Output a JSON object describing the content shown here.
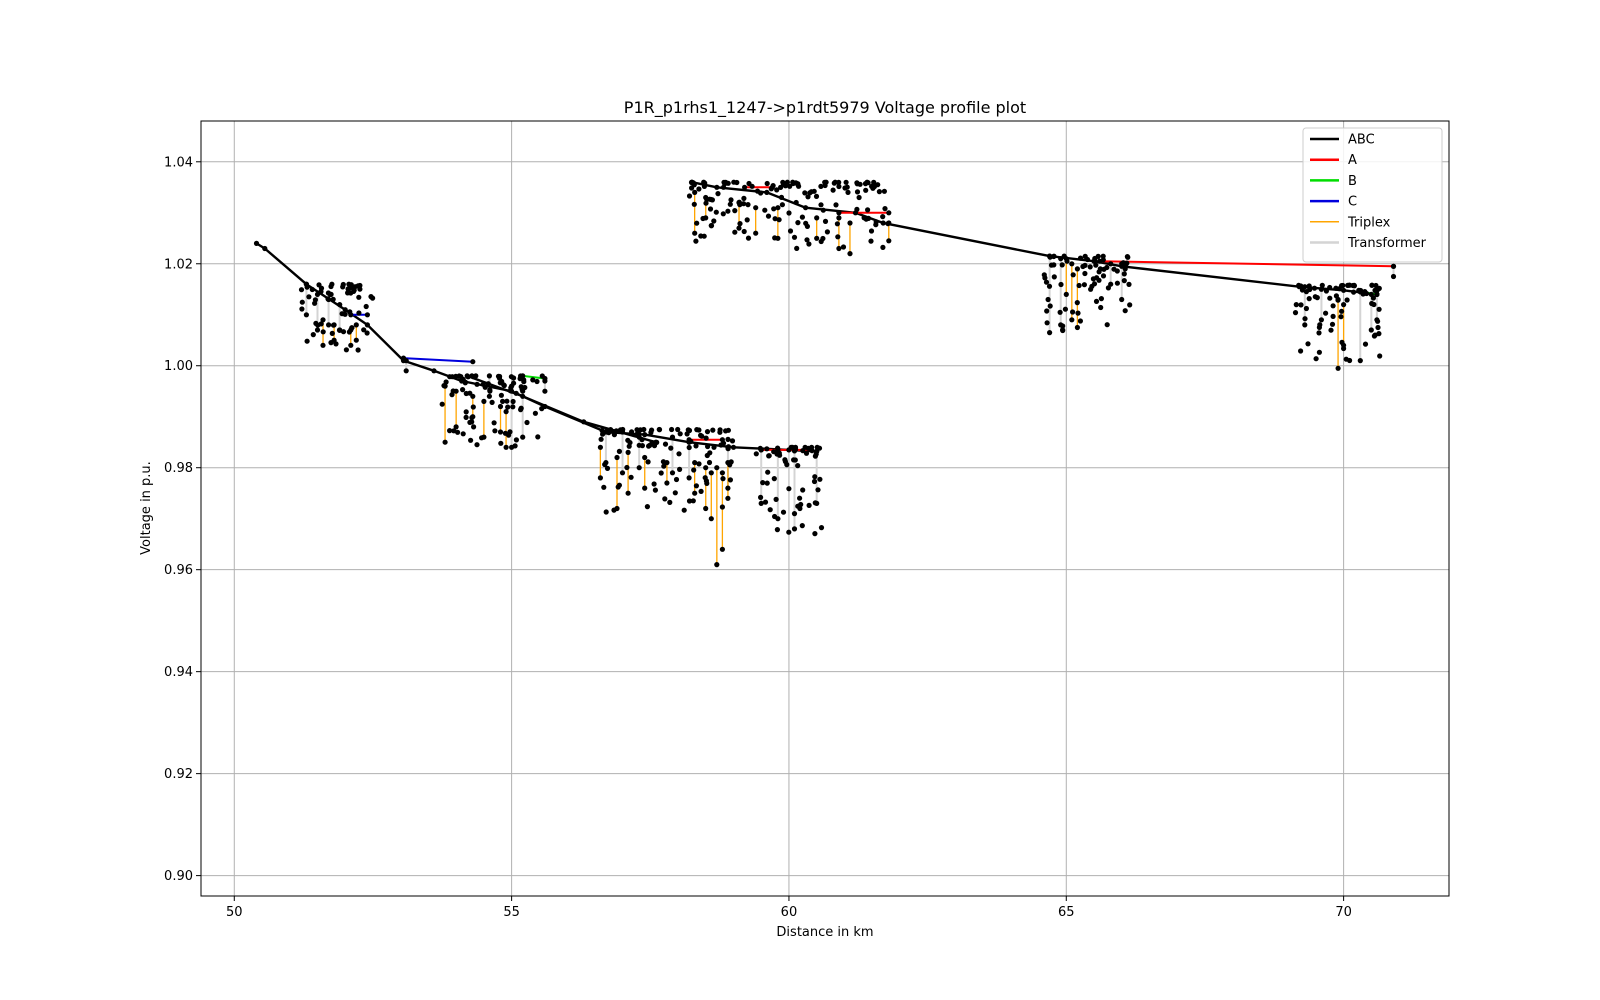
{
  "chart_data": {
    "type": "line",
    "title": "P1R_p1rhs1_1247->p1rdt5979 Voltage profile plot",
    "xlabel": "Distance in km",
    "ylabel": "Voltage in p.u.",
    "xlim": [
      49.4,
      71.9
    ],
    "ylim": [
      0.896,
      1.048
    ],
    "xticks": [
      50,
      55,
      60,
      65,
      70
    ],
    "yticks": [
      0.9,
      0.92,
      0.94,
      0.96,
      0.98,
      1.0,
      1.02,
      1.04
    ],
    "xtick_labels": [
      "50",
      "55",
      "60",
      "65",
      "70"
    ],
    "ytick_labels": [
      "0.90",
      "0.92",
      "0.94",
      "0.96",
      "0.98",
      "1.00",
      "1.02",
      "1.04"
    ],
    "grid": true,
    "legend_position": "top-right",
    "series": [
      {
        "name": "ABC",
        "color": "#000000",
        "kind": "primary",
        "segments": [
          [
            [
              50.4,
              1.024
            ],
            [
              50.55,
              1.023
            ],
            [
              51.3,
              1.016
            ],
            [
              52.0,
              1.011
            ],
            [
              52.4,
              1.008
            ],
            [
              53.05,
              1.001
            ],
            [
              53.6,
              0.999
            ],
            [
              54.1,
              0.997
            ],
            [
              55.0,
              0.995
            ],
            [
              55.6,
              0.992
            ],
            [
              56.7,
              0.987
            ],
            [
              57.4,
              0.9865
            ],
            [
              58.2,
              0.985
            ],
            [
              59.0,
              0.984
            ],
            [
              60.0,
              0.9835
            ],
            [
              60.5,
              0.9832
            ]
          ],
          [
            [
              54.2,
              0.998
            ],
            [
              55.2,
              0.994
            ],
            [
              56.3,
              0.989
            ],
            [
              57.6,
              0.985
            ]
          ],
          [
            [
              58.25,
              1.036
            ],
            [
              58.7,
              1.035
            ],
            [
              59.6,
              1.034
            ],
            [
              60.3,
              1.031
            ],
            [
              61.2,
              1.03
            ],
            [
              61.7,
              1.028
            ],
            [
              64.7,
              1.0215
            ],
            [
              65.5,
              1.0205
            ],
            [
              66.0,
              1.0195
            ],
            [
              69.2,
              1.0155
            ],
            [
              70.0,
              1.0148
            ],
            [
              70.6,
              1.014
            ]
          ]
        ]
      },
      {
        "name": "A",
        "color": "#ff0000",
        "kind": "primary",
        "segments": [
          [
            [
              59.2,
              1.035
            ],
            [
              59.7,
              1.035
            ]
          ],
          [
            [
              60.9,
              1.03
            ],
            [
              61.8,
              1.03
            ]
          ],
          [
            [
              65.6,
              1.0205
            ],
            [
              70.9,
              1.0195
            ]
          ],
          [
            [
              58.2,
              0.9855
            ],
            [
              58.8,
              0.9855
            ]
          ],
          [
            [
              59.5,
              0.9835
            ],
            [
              60.4,
              0.9835
            ]
          ]
        ]
      },
      {
        "name": "B",
        "color": "#00dd00",
        "kind": "primary",
        "segments": [
          [
            [
              55.2,
              0.998
            ],
            [
              55.6,
              0.9975
            ]
          ],
          [
            [
              70.3,
              1.0145
            ],
            [
              70.6,
              1.014
            ]
          ]
        ]
      },
      {
        "name": "C",
        "color": "#0000dd",
        "kind": "primary",
        "segments": [
          [
            [
              52.1,
              1.01
            ],
            [
              52.4,
              1.01
            ]
          ],
          [
            [
              53.05,
              1.0015
            ],
            [
              54.3,
              1.0008
            ]
          ]
        ]
      },
      {
        "name": "Triplex",
        "color": "#ffa500",
        "kind": "drop",
        "drops": [
          [
            51.6,
            1.009,
            1.004
          ],
          [
            51.8,
            1.008,
            1.005
          ],
          [
            52.1,
            1.007,
            1.004
          ],
          [
            52.2,
            1.008,
            1.005
          ],
          [
            53.8,
            0.996,
            0.985
          ],
          [
            54.0,
            0.995,
            0.988
          ],
          [
            54.3,
            0.994,
            0.99
          ],
          [
            54.5,
            0.993,
            0.986
          ],
          [
            54.8,
            0.992,
            0.987
          ],
          [
            54.9,
            0.991,
            0.984
          ],
          [
            56.6,
            0.984,
            0.978
          ],
          [
            56.9,
            0.982,
            0.972
          ],
          [
            57.1,
            0.983,
            0.975
          ],
          [
            57.4,
            0.982,
            0.976
          ],
          [
            57.8,
            0.981,
            0.977
          ],
          [
            58.3,
            0.981,
            0.975
          ],
          [
            58.5,
            0.98,
            0.972
          ],
          [
            58.6,
            0.979,
            0.97
          ],
          [
            58.7,
            0.98,
            0.961
          ],
          [
            58.8,
            0.979,
            0.964
          ],
          [
            58.9,
            0.981,
            0.974
          ],
          [
            58.3,
            1.034,
            1.026
          ],
          [
            58.5,
            1.033,
            1.029
          ],
          [
            59.1,
            1.032,
            1.027
          ],
          [
            59.4,
            1.031,
            1.026
          ],
          [
            59.8,
            1.031,
            1.025
          ],
          [
            60.5,
            1.029,
            1.025
          ],
          [
            60.9,
            1.029,
            1.023
          ],
          [
            61.1,
            1.028,
            1.022
          ],
          [
            61.8,
            1.028,
            1.0245
          ],
          [
            65.0,
            1.021,
            1.014
          ],
          [
            65.1,
            1.02,
            1.009
          ],
          [
            65.2,
            1.019,
            1.0075
          ],
          [
            69.9,
            1.013,
            0.9995
          ],
          [
            70.0,
            1.012,
            1.004
          ]
        ]
      },
      {
        "name": "Transformer",
        "color": "#d4d4d4",
        "kind": "drop",
        "drops": [
          [
            51.3,
            1.016,
            1.01
          ],
          [
            51.5,
            1.014,
            1.007
          ],
          [
            51.7,
            1.013,
            1.008
          ],
          [
            51.9,
            1.012,
            1.007
          ],
          [
            53.1,
            1.001,
            0.999
          ],
          [
            54.6,
            0.998,
            0.994
          ],
          [
            55.0,
            0.996,
            0.984
          ],
          [
            55.2,
            0.995,
            0.986
          ],
          [
            55.6,
            0.997,
            0.995
          ],
          [
            56.7,
            0.987,
            0.981
          ],
          [
            57.0,
            0.987,
            0.979
          ],
          [
            57.3,
            0.986,
            0.98
          ],
          [
            57.9,
            0.986,
            0.979
          ],
          [
            58.2,
            0.985,
            0.978
          ],
          [
            58.9,
            0.984,
            0.976
          ],
          [
            59.5,
            0.9835,
            0.973
          ],
          [
            59.8,
            0.9835,
            0.97
          ],
          [
            60.1,
            0.9833,
            0.968
          ],
          [
            60.5,
            0.9832,
            0.973
          ],
          [
            64.7,
            1.0215,
            1.0065
          ],
          [
            64.9,
            1.021,
            1.008
          ],
          [
            65.8,
            1.02,
            1.016
          ],
          [
            66.0,
            1.02,
            1.013
          ],
          [
            69.3,
            1.0155,
            1.008
          ],
          [
            69.6,
            1.015,
            1.009
          ],
          [
            70.3,
            1.0145,
            1.001
          ],
          [
            70.5,
            1.014,
            1.007
          ],
          [
            70.6,
            1.014,
            1.009
          ],
          [
            70.9,
            1.0195,
            1.0175
          ]
        ]
      }
    ],
    "node_clusters": [
      {
        "x": [
          51.2,
          52.5
        ],
        "y": [
          1.003,
          1.016
        ]
      },
      {
        "x": [
          53.7,
          55.6
        ],
        "y": [
          0.984,
          0.998
        ]
      },
      {
        "x": [
          56.6,
          59.0
        ],
        "y": [
          0.971,
          0.9875
        ]
      },
      {
        "x": [
          59.4,
          60.6
        ],
        "y": [
          0.967,
          0.984
        ]
      },
      {
        "x": [
          58.2,
          61.8
        ],
        "y": [
          1.022,
          1.036
        ]
      },
      {
        "x": [
          64.6,
          66.2
        ],
        "y": [
          1.006,
          1.0215
        ]
      },
      {
        "x": [
          69.1,
          70.7
        ],
        "y": [
          1.0,
          1.0158
        ]
      }
    ]
  }
}
